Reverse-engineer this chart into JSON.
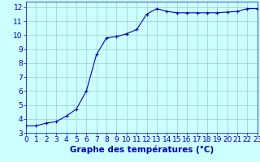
{
  "x": [
    0,
    1,
    2,
    3,
    4,
    5,
    6,
    7,
    8,
    9,
    10,
    11,
    12,
    13,
    14,
    15,
    16,
    17,
    18,
    19,
    20,
    21,
    22,
    23
  ],
  "y": [
    3.5,
    3.5,
    3.7,
    3.8,
    4.2,
    4.7,
    6.0,
    8.6,
    9.8,
    9.9,
    10.1,
    10.4,
    11.5,
    11.9,
    11.7,
    11.6,
    11.6,
    11.6,
    11.6,
    11.6,
    11.65,
    11.7,
    11.9,
    11.9
  ],
  "line_color": "#0000bb",
  "marker": "+",
  "marker_size": 3,
  "xlabel": "Graphe des températures (°C)",
  "xlabel_color": "#0000bb",
  "xlabel_fontsize": 7.5,
  "bg_color": "#ccffff",
  "grid_color": "#99cccc",
  "tick_color": "#0000bb",
  "tick_fontsize": 6.5,
  "ylim": [
    3,
    12.4
  ],
  "xlim": [
    0,
    23
  ],
  "yticks": [
    3,
    4,
    5,
    6,
    7,
    8,
    9,
    10,
    11,
    12
  ],
  "xticks": [
    0,
    1,
    2,
    3,
    4,
    5,
    6,
    7,
    8,
    9,
    10,
    11,
    12,
    13,
    14,
    15,
    16,
    17,
    18,
    19,
    20,
    21,
    22,
    23
  ]
}
